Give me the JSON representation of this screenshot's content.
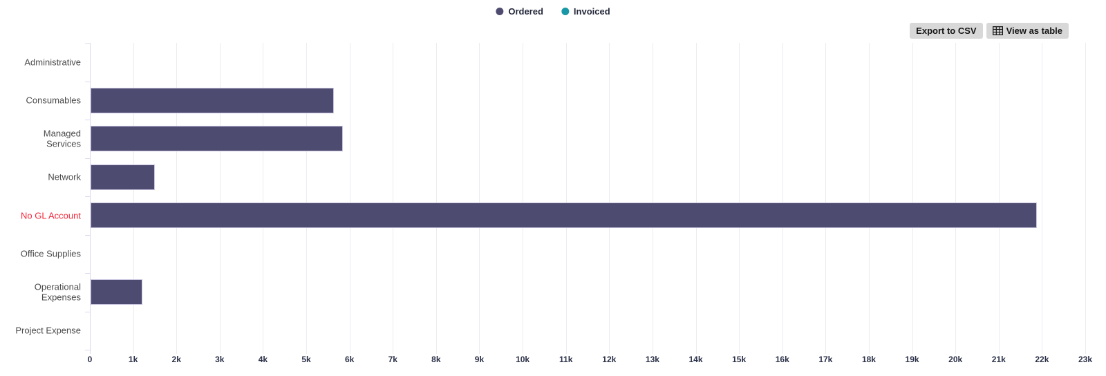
{
  "toolbar": {
    "export_csv": "Export to CSV",
    "view_as_table": "View as table"
  },
  "chart_data": {
    "type": "bar",
    "orientation": "horizontal",
    "title": "",
    "xlabel": "",
    "ylabel": "",
    "grid": "vertical",
    "legend_position": "top-center",
    "categories": [
      "Administrative",
      "Consumables",
      "Managed Services",
      "Network",
      "No GL Account",
      "Office Supplies",
      "Operational Expenses",
      "Project Expense"
    ],
    "series": [
      {
        "name": "Ordered",
        "color": "#4e4b70",
        "values": [
          0,
          5630,
          5830,
          1490,
          21870,
          0,
          1200,
          0
        ]
      },
      {
        "name": "Invoiced",
        "color": "#1897a6",
        "values": [
          0,
          0,
          0,
          0,
          0,
          0,
          0,
          0
        ]
      }
    ],
    "xlim": [
      0,
      23000
    ],
    "x_tick_step": 1000,
    "x_tick_labels": [
      "0",
      "1k",
      "2k",
      "3k",
      "4k",
      "5k",
      "6k",
      "7k",
      "8k",
      "9k",
      "10k",
      "11k",
      "12k",
      "13k",
      "14k",
      "15k",
      "16k",
      "17k",
      "18k",
      "19k",
      "20k",
      "21k",
      "22k",
      "23k"
    ],
    "category_label_colors": {
      "No GL Account": "#f3293a"
    },
    "default_category_label_color": "#4a4a4a"
  }
}
